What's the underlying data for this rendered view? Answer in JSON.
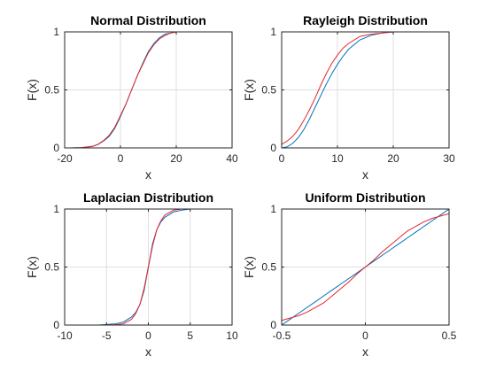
{
  "chart_data": [
    {
      "type": "line",
      "title": "Normal Distribution",
      "xlabel": "x",
      "ylabel": "F(x)",
      "xlim": [
        -20,
        40
      ],
      "ylim": [
        0,
        1
      ],
      "xticks": [
        "-20",
        "0",
        "20",
        "40"
      ],
      "yticks": [
        "0",
        "0.5",
        "1"
      ],
      "grid": true,
      "series": [
        {
          "color": "#0072bd",
          "x": [
            -18,
            -14,
            -10,
            -8,
            -6,
            -4,
            -2,
            0,
            2,
            4,
            6,
            8,
            10,
            12,
            14,
            16,
            18,
            20,
            22
          ],
          "y": [
            0.0,
            0.002,
            0.012,
            0.03,
            0.06,
            0.1,
            0.17,
            0.27,
            0.38,
            0.5,
            0.62,
            0.73,
            0.83,
            0.9,
            0.95,
            0.98,
            0.99,
            1.0,
            1.0
          ]
        },
        {
          "color": "#e8262b",
          "x": [
            -18,
            -14,
            -10,
            -8,
            -6,
            -4,
            -2,
            0,
            2,
            4,
            6,
            8,
            10,
            12,
            14,
            16,
            18,
            20,
            22
          ],
          "y": [
            0.0,
            0.003,
            0.014,
            0.032,
            0.065,
            0.11,
            0.18,
            0.28,
            0.38,
            0.5,
            0.62,
            0.72,
            0.82,
            0.89,
            0.94,
            0.97,
            0.99,
            1.0,
            1.0
          ]
        }
      ]
    },
    {
      "type": "line",
      "title": "Rayleigh Distribution",
      "xlabel": "x",
      "ylabel": "F(x)",
      "xlim": [
        0,
        30
      ],
      "ylim": [
        0,
        1
      ],
      "xticks": [
        "0",
        "10",
        "20",
        "30"
      ],
      "yticks": [
        "0",
        "0.5",
        "1"
      ],
      "grid": true,
      "series": [
        {
          "color": "#0072bd",
          "x": [
            0,
            1,
            2,
            3,
            4,
            5,
            6,
            7,
            8,
            9,
            10,
            11,
            12,
            14,
            16,
            18,
            20,
            22,
            24
          ],
          "y": [
            0.0,
            0.01,
            0.04,
            0.09,
            0.16,
            0.25,
            0.35,
            0.45,
            0.55,
            0.64,
            0.72,
            0.79,
            0.85,
            0.93,
            0.97,
            0.99,
            1.0,
            1.0,
            1.0
          ]
        },
        {
          "color": "#e8262b",
          "x": [
            0,
            1,
            2,
            3,
            4,
            5,
            6,
            7,
            8,
            9,
            10,
            11,
            12,
            14,
            16,
            18,
            20,
            22,
            24
          ],
          "y": [
            0.03,
            0.06,
            0.1,
            0.16,
            0.24,
            0.33,
            0.43,
            0.54,
            0.64,
            0.73,
            0.8,
            0.86,
            0.9,
            0.96,
            0.98,
            0.99,
            1.0,
            1.0,
            1.0
          ]
        }
      ]
    },
    {
      "type": "line",
      "title": "Laplacian Distribution",
      "xlabel": "x",
      "ylabel": "F(x)",
      "xlim": [
        -10,
        10
      ],
      "ylim": [
        0,
        1
      ],
      "xticks": [
        "-10",
        "-5",
        "0",
        "5",
        "10"
      ],
      "yticks": [
        "0",
        "0.5",
        "1"
      ],
      "grid": true,
      "series": [
        {
          "color": "#0072bd",
          "x": [
            -6,
            -5,
            -4,
            -3,
            -2,
            -1.5,
            -1,
            -0.5,
            0,
            0.5,
            1,
            1.5,
            2,
            3,
            4,
            5
          ],
          "y": [
            0.0,
            0.005,
            0.01,
            0.025,
            0.07,
            0.11,
            0.18,
            0.3,
            0.5,
            0.7,
            0.82,
            0.89,
            0.93,
            0.975,
            0.99,
            1.0
          ]
        },
        {
          "color": "#e8262b",
          "x": [
            -5,
            -4,
            -3,
            -2,
            -1.5,
            -1,
            -0.5,
            0,
            0.5,
            1,
            1.5,
            2,
            3,
            4,
            5
          ],
          "y": [
            0.0,
            0.003,
            0.01,
            0.05,
            0.1,
            0.18,
            0.32,
            0.5,
            0.68,
            0.82,
            0.9,
            0.95,
            0.99,
            1.0,
            1.0
          ]
        }
      ]
    },
    {
      "type": "line",
      "title": "Uniform Distribution",
      "xlabel": "x",
      "ylabel": "F(x)",
      "xlim": [
        -0.5,
        0.5
      ],
      "ylim": [
        0,
        1
      ],
      "xticks": [
        "-0.5",
        "0",
        "0.5"
      ],
      "yticks": [
        "0",
        "0.5",
        "1"
      ],
      "grid": true,
      "series": [
        {
          "color": "#0072bd",
          "x": [
            -0.5,
            -0.45,
            -0.4,
            -0.35,
            -0.3,
            -0.25,
            -0.2,
            -0.15,
            -0.1,
            -0.05,
            0,
            0.05,
            0.1,
            0.15,
            0.2,
            0.25,
            0.3,
            0.35,
            0.4,
            0.45,
            0.5
          ],
          "y": [
            0.0,
            0.05,
            0.1,
            0.15,
            0.2,
            0.25,
            0.3,
            0.35,
            0.4,
            0.45,
            0.5,
            0.55,
            0.6,
            0.65,
            0.7,
            0.75,
            0.8,
            0.85,
            0.9,
            0.95,
            1.0
          ]
        },
        {
          "color": "#e8262b",
          "x": [
            -0.5,
            -0.45,
            -0.4,
            -0.35,
            -0.3,
            -0.25,
            -0.2,
            -0.15,
            -0.1,
            -0.05,
            0,
            0.05,
            0.1,
            0.15,
            0.2,
            0.25,
            0.3,
            0.35,
            0.4,
            0.45,
            0.5
          ],
          "y": [
            0.04,
            0.06,
            0.08,
            0.11,
            0.15,
            0.19,
            0.25,
            0.31,
            0.37,
            0.44,
            0.5,
            0.56,
            0.63,
            0.69,
            0.75,
            0.81,
            0.85,
            0.89,
            0.92,
            0.94,
            0.96
          ]
        }
      ]
    }
  ]
}
